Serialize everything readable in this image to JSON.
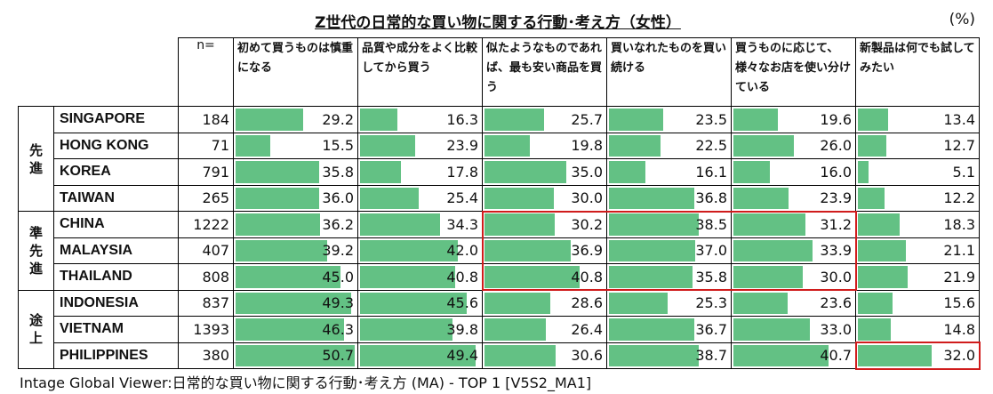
{
  "title": "Z世代の日常的な買い物に関する行動･考え方（女性）",
  "unit": "(%)",
  "n_label": "n=",
  "columns": [
    "初めて買うものは慎重になる",
    "品質や成分をよく比較してから買う",
    "似たようなものであれば、最も安い商品を買う",
    "買いなれたものを買い続ける",
    "買うものに応じて、様々なお店を使い分けている",
    "新製品は何でも試してみたい"
  ],
  "groups": [
    {
      "label": "先進",
      "rows": 4
    },
    {
      "label": "準先進",
      "rows": 3
    },
    {
      "label": "途上",
      "rows": 3
    }
  ],
  "rows": [
    {
      "country": "SINGAPORE",
      "n": "184",
      "values": [
        29.2,
        16.3,
        25.7,
        23.5,
        19.6,
        13.4
      ]
    },
    {
      "country": "HONG KONG",
      "n": "71",
      "values": [
        15.5,
        23.9,
        19.8,
        22.5,
        26.0,
        12.7
      ]
    },
    {
      "country": "KOREA",
      "n": "791",
      "values": [
        35.8,
        17.8,
        35.0,
        16.1,
        16.0,
        5.1
      ]
    },
    {
      "country": "TAIWAN",
      "n": "265",
      "values": [
        36.0,
        25.4,
        30.0,
        36.8,
        23.9,
        12.2
      ]
    },
    {
      "country": "CHINA",
      "n": "1222",
      "values": [
        36.2,
        34.3,
        30.2,
        38.5,
        31.2,
        18.3
      ]
    },
    {
      "country": "MALAYSIA",
      "n": "407",
      "values": [
        39.2,
        42.0,
        36.9,
        37.0,
        33.9,
        21.1
      ]
    },
    {
      "country": "THAILAND",
      "n": "808",
      "values": [
        45.0,
        40.8,
        40.8,
        35.8,
        30.0,
        21.9
      ]
    },
    {
      "country": "INDONESIA",
      "n": "837",
      "values": [
        49.3,
        45.6,
        28.6,
        25.3,
        23.6,
        15.6
      ]
    },
    {
      "country": "VIETNAM",
      "n": "1393",
      "values": [
        46.3,
        39.8,
        26.4,
        36.7,
        33.0,
        14.8
      ]
    },
    {
      "country": "PHILIPPINES",
      "n": "380",
      "values": [
        50.7,
        49.4,
        30.6,
        38.7,
        40.7,
        32.0
      ]
    }
  ],
  "bar_max": 52,
  "highlights": [
    {
      "rows": [
        4,
        6
      ],
      "cols": [
        2,
        4
      ]
    },
    {
      "rows": [
        9,
        9
      ],
      "cols": [
        5,
        5
      ]
    }
  ],
  "colors": {
    "bar": "#63c184",
    "highlight": "#d01c1c"
  },
  "footer": "Intage Global Viewer:日常的な買い物に関する行動･考え方 (MA) - TOP 1 [V5S2_MA1]"
}
